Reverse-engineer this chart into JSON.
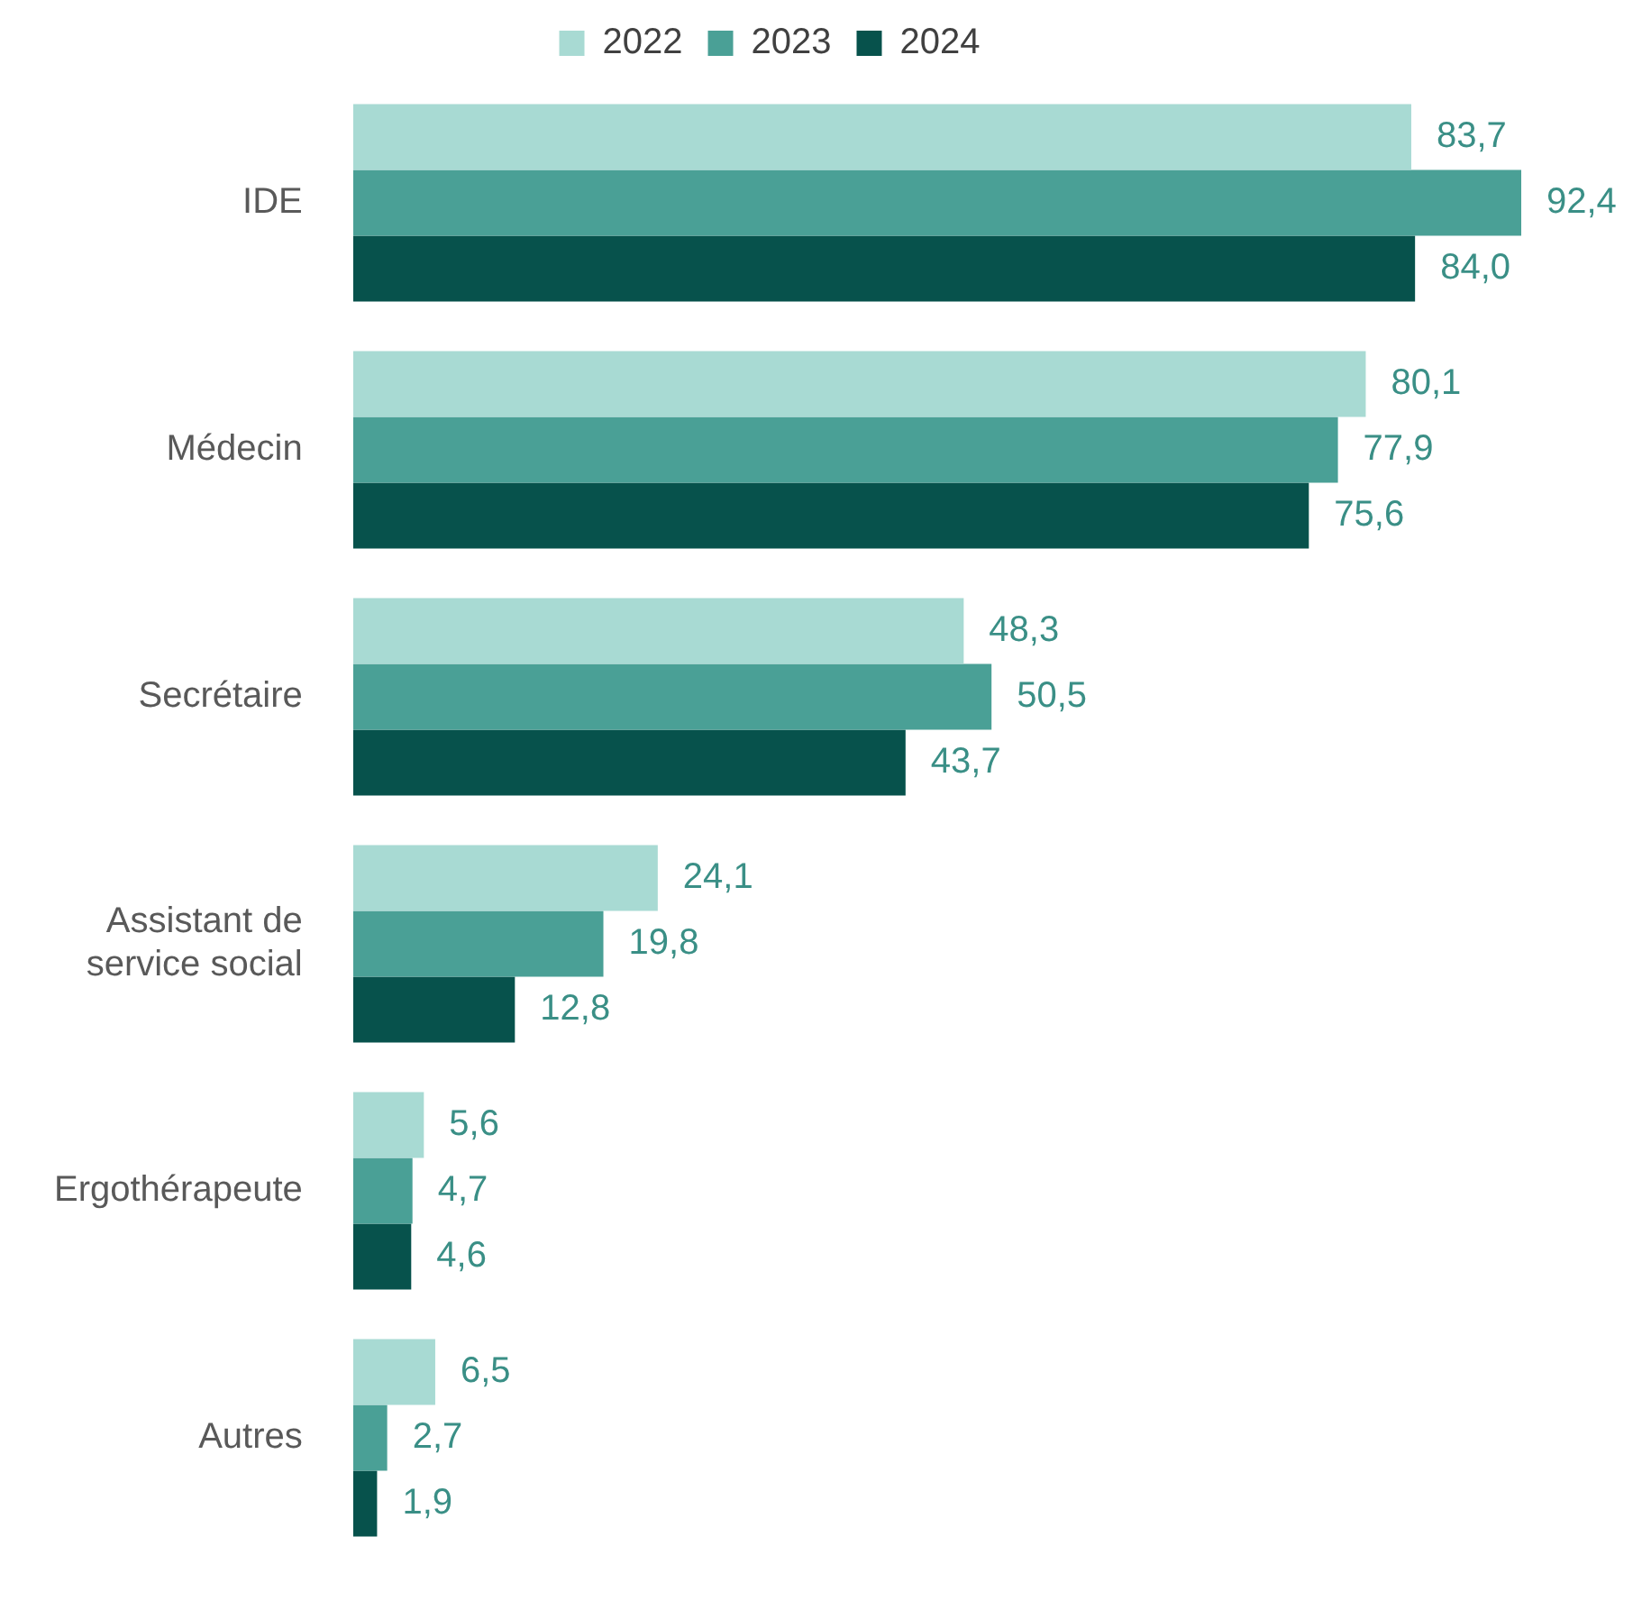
{
  "chart_data": {
    "type": "bar",
    "orientation": "horizontal",
    "categories": [
      "IDE",
      "Médecin",
      "Secrétaire",
      "Assistant de service social",
      "Ergothérapeute",
      "Autres"
    ],
    "series": [
      {
        "name": "2022",
        "color": "#a8dad3",
        "values": [
          83.7,
          80.1,
          48.3,
          24.1,
          5.6,
          6.5
        ],
        "value_labels": [
          "83,7",
          "80,1",
          "48,3",
          "24,1",
          "5,6",
          "6,5"
        ]
      },
      {
        "name": "2023",
        "color": "#4aa096",
        "values": [
          92.4,
          77.9,
          50.5,
          19.8,
          4.7,
          2.7
        ],
        "value_labels": [
          "92,4",
          "77,9",
          "50,5",
          "19,8",
          "4,7",
          "2,7"
        ]
      },
      {
        "name": "2024",
        "color": "#07524c",
        "values": [
          84.0,
          75.6,
          43.7,
          12.8,
          4.6,
          1.9
        ],
        "value_labels": [
          "84,0",
          "75,6",
          "43,7",
          "12,8",
          "4,6",
          "1,9"
        ]
      }
    ],
    "legend": "top",
    "grid": false
  }
}
